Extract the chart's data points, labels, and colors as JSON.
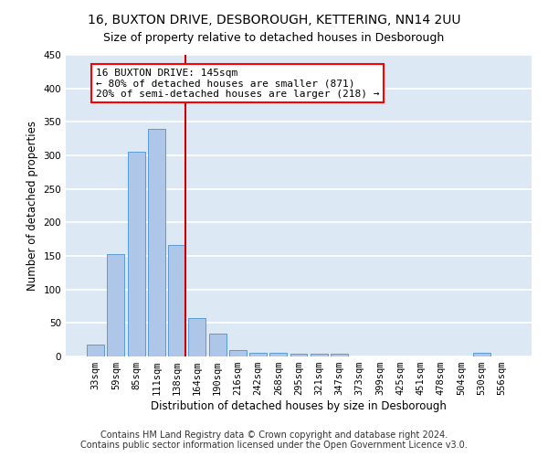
{
  "title1": "16, BUXTON DRIVE, DESBOROUGH, KETTERING, NN14 2UU",
  "title2": "Size of property relative to detached houses in Desborough",
  "xlabel": "Distribution of detached houses by size in Desborough",
  "ylabel": "Number of detached properties",
  "footer1": "Contains HM Land Registry data © Crown copyright and database right 2024.",
  "footer2": "Contains public sector information licensed under the Open Government Licence v3.0.",
  "annotation_line1": "16 BUXTON DRIVE: 145sqm",
  "annotation_line2": "← 80% of detached houses are smaller (871)",
  "annotation_line3": "20% of semi-detached houses are larger (218) →",
  "bar_color": "#aec6e8",
  "bar_edge_color": "#5b9bd5",
  "vline_color": "#cc0000",
  "background_color": "#dde8f5",
  "grid_color": "#ffffff",
  "categories": [
    "33sqm",
    "59sqm",
    "85sqm",
    "111sqm",
    "138sqm",
    "164sqm",
    "190sqm",
    "216sqm",
    "242sqm",
    "268sqm",
    "295sqm",
    "321sqm",
    "347sqm",
    "373sqm",
    "399sqm",
    "425sqm",
    "451sqm",
    "478sqm",
    "504sqm",
    "530sqm",
    "556sqm"
  ],
  "values": [
    18,
    153,
    306,
    340,
    166,
    57,
    34,
    10,
    6,
    5,
    4,
    4,
    4,
    0,
    0,
    0,
    0,
    0,
    0,
    5,
    0
  ],
  "ylim": [
    0,
    450
  ],
  "yticks": [
    0,
    50,
    100,
    150,
    200,
    250,
    300,
    350,
    400,
    450
  ],
  "vline_index": 4,
  "title1_fontsize": 10,
  "title2_fontsize": 9,
  "xlabel_fontsize": 8.5,
  "ylabel_fontsize": 8.5,
  "tick_fontsize": 7.5,
  "annotation_fontsize": 8,
  "footer_fontsize": 7
}
